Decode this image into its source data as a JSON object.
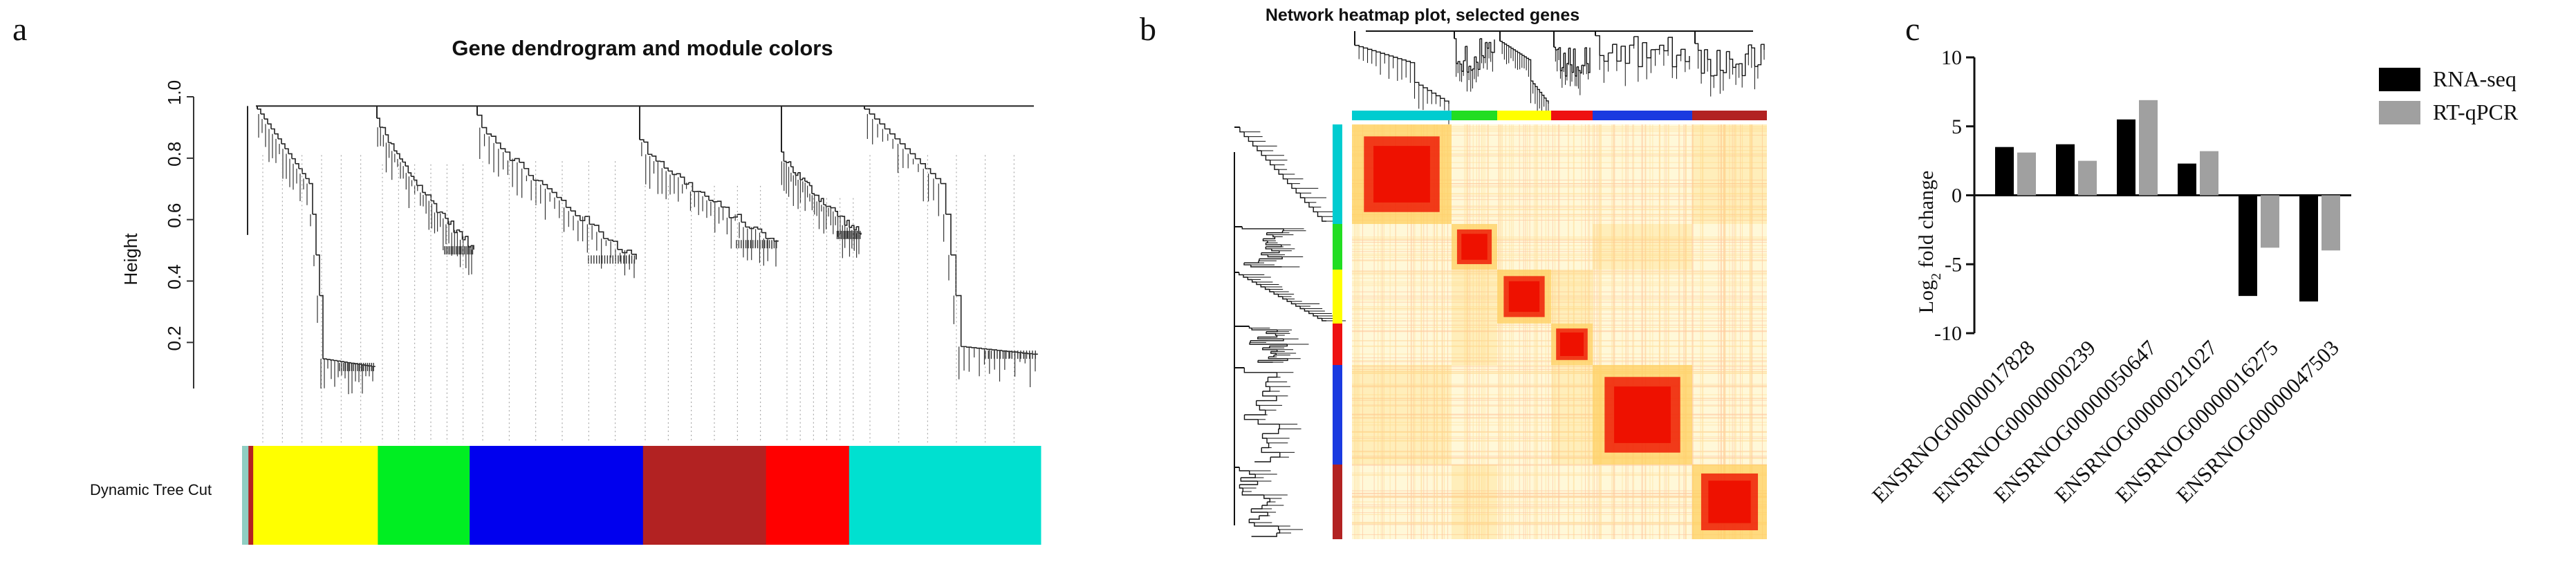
{
  "panels": {
    "a": {
      "letter": "a",
      "title": "Gene dendrogram and module colors",
      "ylabel": "Height",
      "yticks": [
        "1.0",
        "0.8",
        "0.6",
        "0.4",
        "0.2"
      ],
      "color_bar_label": "Dynamic Tree Cut",
      "modules": [
        {
          "name": "turquoise",
          "color": "#8fcfc3",
          "share": 0.008
        },
        {
          "name": "brown",
          "color": "#b22222",
          "share": 0.006
        },
        {
          "name": "yellow",
          "color": "#ffff00",
          "share": 0.156
        },
        {
          "name": "green",
          "color": "#00ee22",
          "share": 0.115
        },
        {
          "name": "blue",
          "color": "#0000ee",
          "share": 0.217
        },
        {
          "name": "brown",
          "color": "#b22222",
          "share": 0.154
        },
        {
          "name": "red",
          "color": "#ff0000",
          "share": 0.104
        },
        {
          "name": "turquoise",
          "color": "#00e0d0",
          "share": 0.24
        }
      ]
    },
    "b": {
      "letter": "b",
      "title": "Network heatmap plot, selected genes",
      "modules": [
        {
          "name": "turquoise",
          "color": "#00ccd0",
          "share": 0.24
        },
        {
          "name": "green",
          "color": "#22dd22",
          "share": 0.11
        },
        {
          "name": "yellow",
          "color": "#ffff00",
          "share": 0.13
        },
        {
          "name": "red",
          "color": "#ee1111",
          "share": 0.1
        },
        {
          "name": "blue",
          "color": "#1a3ae0",
          "share": 0.24
        },
        {
          "name": "brown",
          "color": "#b22222",
          "share": 0.18
        }
      ],
      "heat_low": "#fff8d8",
      "heat_mid": "#ffd060",
      "heat_high": "#ee1100"
    },
    "c": {
      "letter": "c",
      "legend": [
        {
          "label": "RNA-seq",
          "color": "#000000"
        },
        {
          "label": "RT-qPCR",
          "color": "#a0a0a0"
        }
      ]
    }
  },
  "chart_data": [
    {
      "type": "dendrogram",
      "title": "Gene dendrogram and module colors",
      "ylabel": "Height",
      "ylim": [
        0.05,
        1.0
      ],
      "ytick_values": [
        1.0,
        0.8,
        0.6,
        0.4,
        0.2
      ],
      "color_row_label": "Dynamic Tree Cut",
      "module_order": [
        "turquoise",
        "brown",
        "yellow",
        "green",
        "blue",
        "brown",
        "red",
        "turquoise"
      ]
    },
    {
      "type": "heatmap",
      "title": "Network heatmap plot, selected genes",
      "module_order": [
        "turquoise",
        "green",
        "yellow",
        "red",
        "blue",
        "brown"
      ]
    },
    {
      "type": "bar",
      "title": "",
      "xlabel": "",
      "ylabel": "Log2 fold change",
      "ylabel_base": "Log",
      "ylabel_sub": "2",
      "ylabel_rest": " fold change",
      "ylim": [
        -10,
        10
      ],
      "yticks": [
        10,
        5,
        0,
        -5,
        -10
      ],
      "categories": [
        "ENSRNOG00000017828",
        "ENSRNOG00000000239",
        "ENSRNOG00000050647",
        "ENSRNOG00000021027",
        "ENSRNOG00000016275",
        "ENSRNOG00000047503"
      ],
      "series": [
        {
          "name": "RNA-seq",
          "values": [
            3.5,
            3.7,
            5.5,
            2.3,
            -7.3,
            -7.7
          ]
        },
        {
          "name": "RT-qPCR",
          "values": [
            3.1,
            2.5,
            6.9,
            3.2,
            -3.8,
            -4.0
          ]
        }
      ]
    }
  ]
}
